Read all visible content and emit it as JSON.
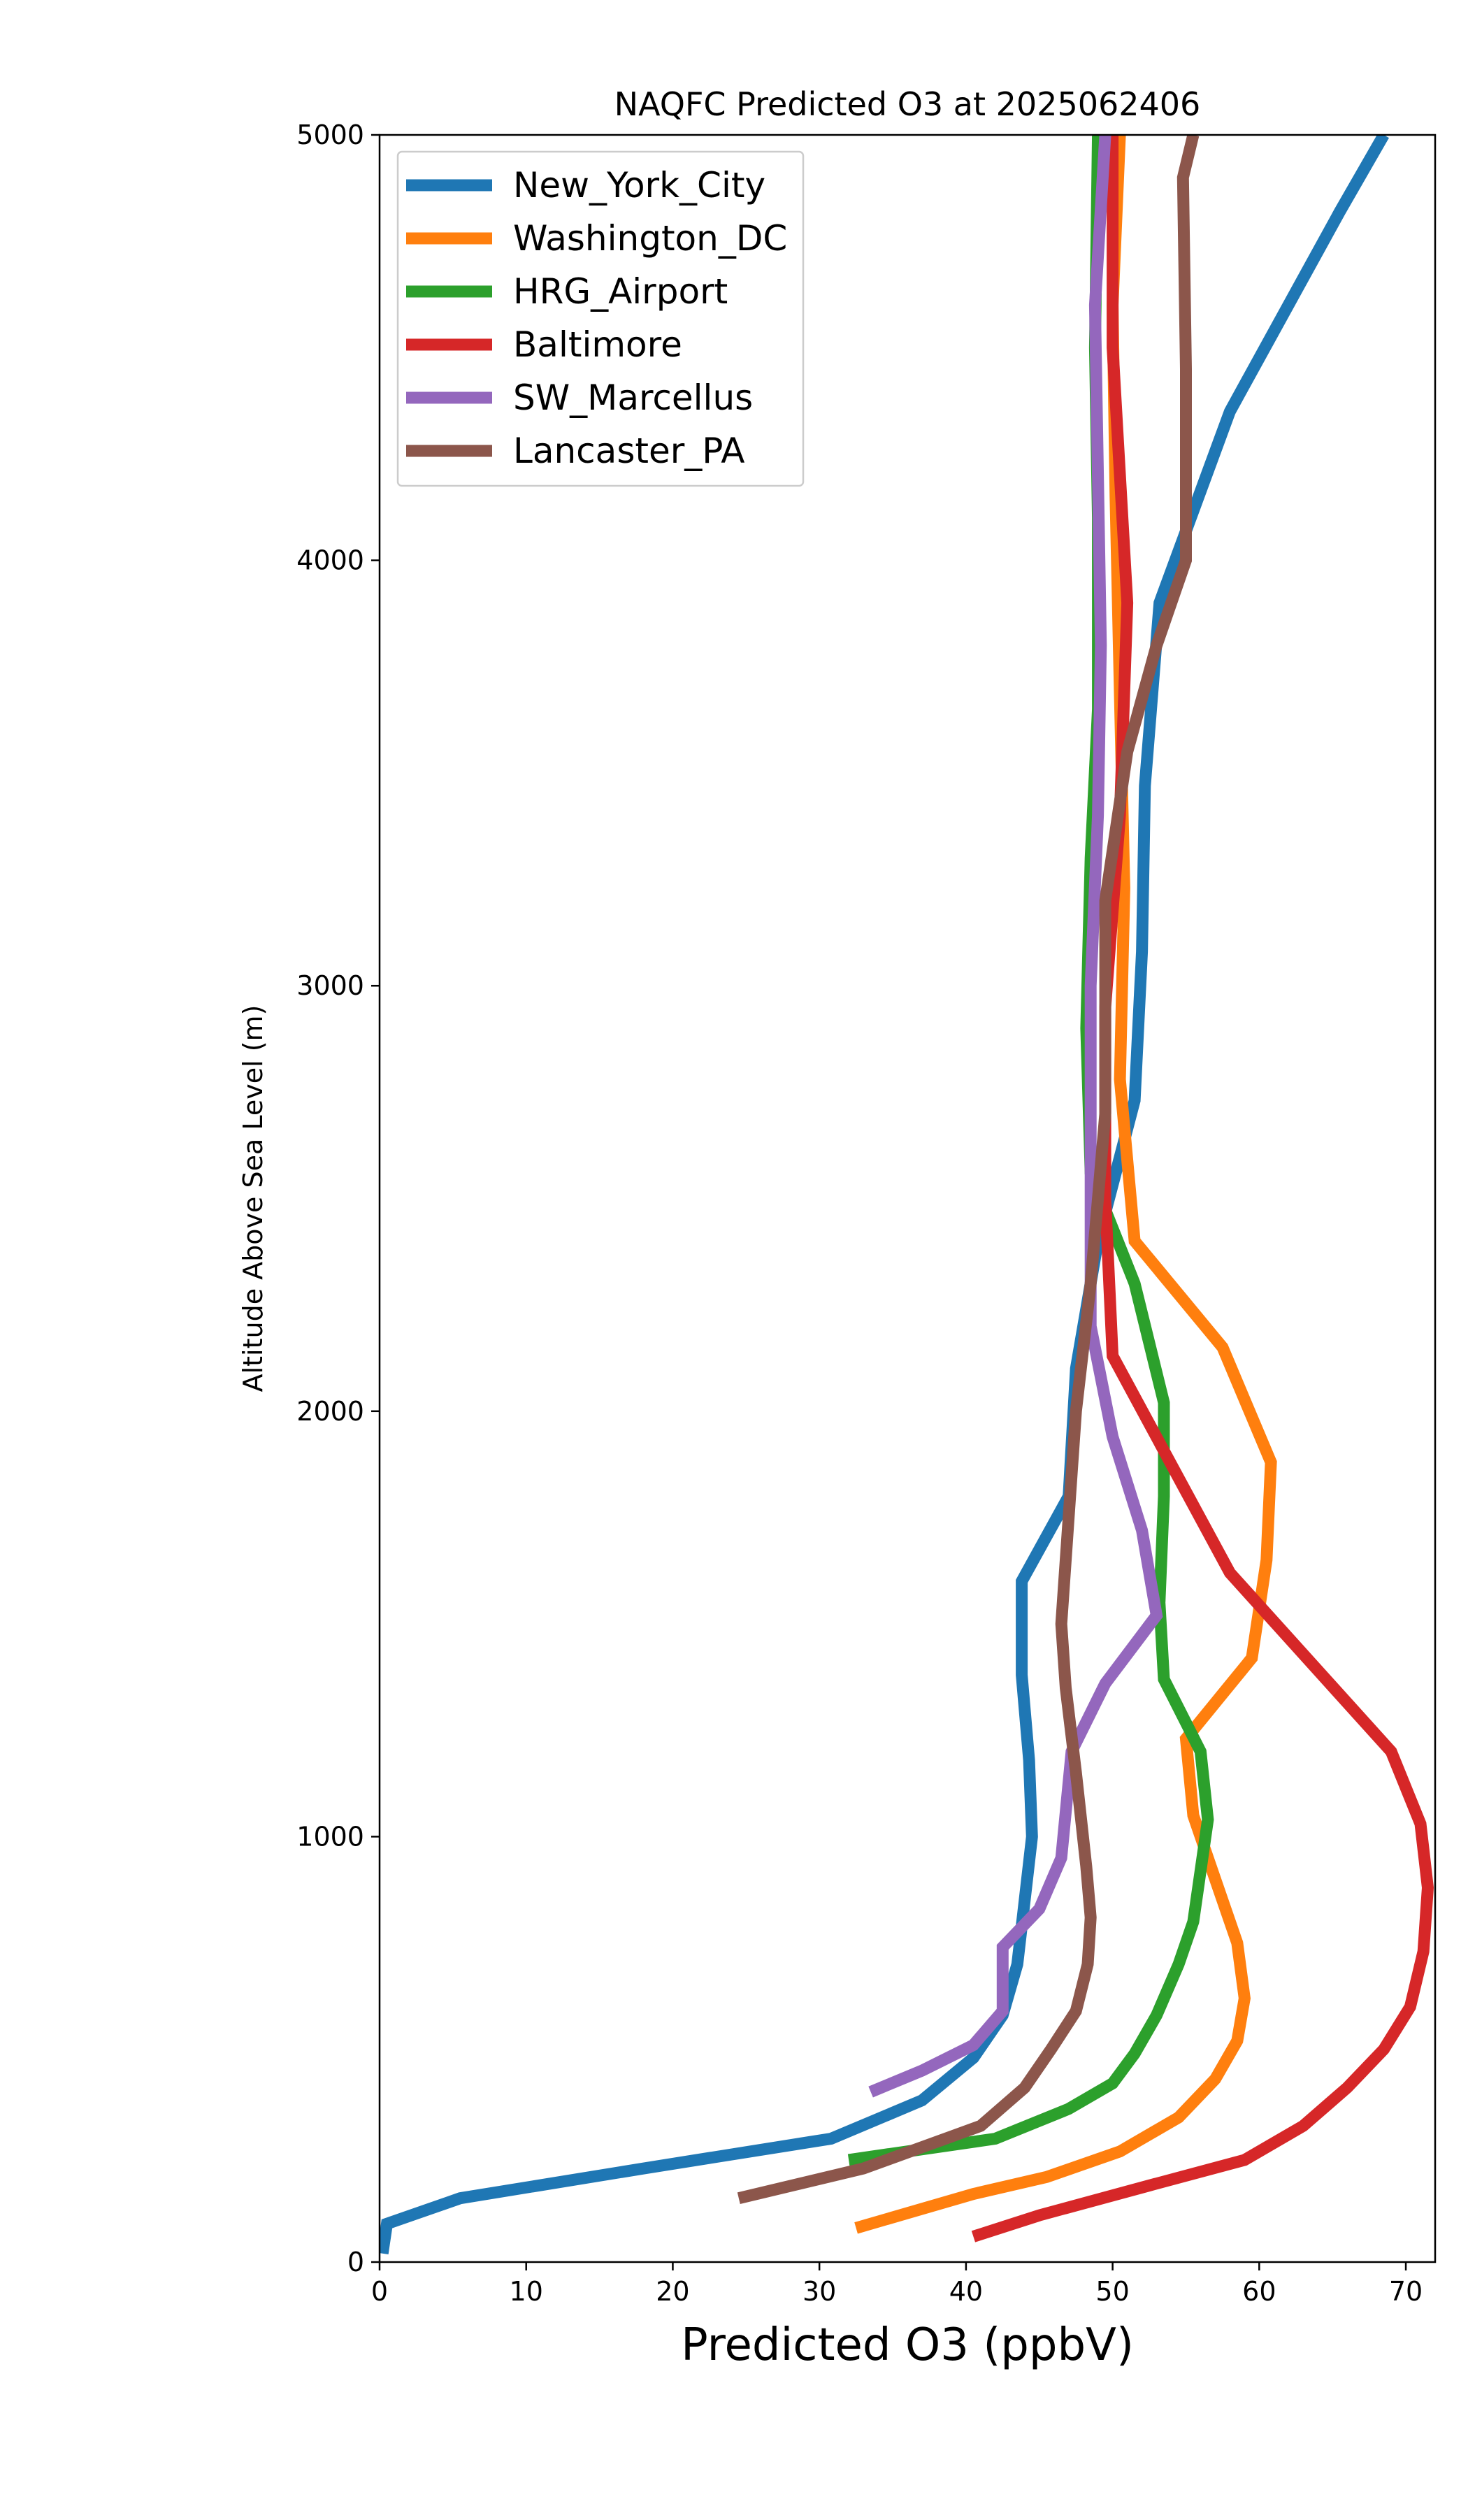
{
  "chart_data": {
    "type": "line",
    "title": "NAQFC Predicted O3 at 2025062406",
    "xlabel": "Predicted O3 (ppbV)",
    "ylabel": "Altitude Above Sea Level (m)",
    "xlim": [
      0,
      72
    ],
    "ylim": [
      0,
      5000
    ],
    "xticks": [
      0,
      10,
      20,
      30,
      40,
      50,
      60,
      70
    ],
    "yticks": [
      0,
      1000,
      2000,
      3000,
      4000,
      5000
    ],
    "xtick_labels": [
      "0",
      "10",
      "20",
      "30",
      "40",
      "50",
      "60",
      "70"
    ],
    "ytick_labels": [
      "0",
      "1000",
      "2000",
      "3000",
      "4000",
      "5000"
    ],
    "grid": false,
    "legend_position": "top-left",
    "series": [
      {
        "name": "New_York_City",
        "color": "#1f77b4",
        "points": [
          [
            0.2,
            20
          ],
          [
            0.5,
            90
          ],
          [
            5.5,
            150
          ],
          [
            18,
            220
          ],
          [
            30.8,
            290
          ],
          [
            37,
            380
          ],
          [
            40.5,
            480
          ],
          [
            42.5,
            580
          ],
          [
            43.5,
            700
          ],
          [
            44,
            850
          ],
          [
            44.5,
            1000
          ],
          [
            44.3,
            1180
          ],
          [
            43.8,
            1380
          ],
          [
            43.8,
            1600
          ],
          [
            47,
            1800
          ],
          [
            47.5,
            2100
          ],
          [
            49,
            2400
          ],
          [
            51.5,
            2730
          ],
          [
            52,
            3080
          ],
          [
            52.2,
            3470
          ],
          [
            53.2,
            3900
          ],
          [
            58,
            4350
          ],
          [
            65.5,
            4820
          ],
          [
            68.5,
            5000
          ]
        ]
      },
      {
        "name": "Washington_DC",
        "color": "#ff7f0e",
        "points": [
          [
            32.5,
            80
          ],
          [
            40.5,
            160
          ],
          [
            45.5,
            200
          ],
          [
            50.5,
            260
          ],
          [
            54.5,
            340
          ],
          [
            57,
            430
          ],
          [
            58.5,
            520
          ],
          [
            59,
            620
          ],
          [
            58.5,
            750
          ],
          [
            57,
            900
          ],
          [
            55.5,
            1050
          ],
          [
            55,
            1230
          ],
          [
            59.5,
            1420
          ],
          [
            60.5,
            1650
          ],
          [
            60.8,
            1880
          ],
          [
            57.5,
            2150
          ],
          [
            51.5,
            2400
          ],
          [
            50.5,
            2780
          ],
          [
            50.8,
            3230
          ],
          [
            50.5,
            3680
          ],
          [
            50.2,
            4150
          ],
          [
            50,
            4600
          ],
          [
            50.5,
            5000
          ]
        ]
      },
      {
        "name": "HRG_Airport",
        "color": "#2ca02c",
        "points": [
          [
            32,
            240
          ],
          [
            42,
            290
          ],
          [
            47,
            360
          ],
          [
            50,
            420
          ],
          [
            51.5,
            490
          ],
          [
            53,
            580
          ],
          [
            54.5,
            700
          ],
          [
            55.5,
            800
          ],
          [
            56.5,
            1040
          ],
          [
            56,
            1200
          ],
          [
            53.5,
            1370
          ],
          [
            53.2,
            1550
          ],
          [
            53.5,
            1800
          ],
          [
            53.5,
            2020
          ],
          [
            51.5,
            2300
          ],
          [
            48.5,
            2560
          ],
          [
            48.2,
            2900
          ],
          [
            48.5,
            3300
          ],
          [
            49,
            3650
          ],
          [
            49,
            4100
          ],
          [
            48.8,
            4500
          ],
          [
            49,
            5000
          ]
        ]
      },
      {
        "name": "Baltimore",
        "color": "#d62728",
        "points": [
          [
            40.5,
            60
          ],
          [
            45,
            110
          ],
          [
            52.5,
            180
          ],
          [
            59,
            240
          ],
          [
            63,
            320
          ],
          [
            66,
            410
          ],
          [
            68.5,
            500
          ],
          [
            70.3,
            600
          ],
          [
            71.2,
            730
          ],
          [
            71.5,
            880
          ],
          [
            71,
            1030
          ],
          [
            69,
            1200
          ],
          [
            58,
            1620
          ],
          [
            50,
            2130
          ],
          [
            49.5,
            2500
          ],
          [
            49.5,
            2950
          ],
          [
            50.5,
            3400
          ],
          [
            51,
            3900
          ],
          [
            50.5,
            4200
          ],
          [
            50,
            4500
          ],
          [
            50,
            5000
          ]
        ]
      },
      {
        "name": "SW_Marcellus",
        "color": "#9467bd",
        "points": [
          [
            33.5,
            400
          ],
          [
            37,
            450
          ],
          [
            40.5,
            510
          ],
          [
            42.5,
            590
          ],
          [
            42.5,
            740
          ],
          [
            45,
            830
          ],
          [
            46.5,
            950
          ],
          [
            47.2,
            1200
          ],
          [
            49.5,
            1360
          ],
          [
            53,
            1520
          ],
          [
            52,
            1720
          ],
          [
            50,
            1940
          ],
          [
            48.5,
            2200
          ],
          [
            48.5,
            2600
          ],
          [
            48.5,
            3000
          ],
          [
            49,
            3400
          ],
          [
            49.2,
            3800
          ],
          [
            49,
            4200
          ],
          [
            48.8,
            4600
          ],
          [
            49.5,
            5000
          ]
        ]
      },
      {
        "name": "Lancaster_PA",
        "color": "#8c564b",
        "points": [
          [
            24.5,
            150
          ],
          [
            33,
            220
          ],
          [
            41,
            320
          ],
          [
            44,
            410
          ],
          [
            45.8,
            500
          ],
          [
            47.5,
            590
          ],
          [
            48.3,
            700
          ],
          [
            48.5,
            810
          ],
          [
            48.2,
            930
          ],
          [
            47.5,
            1150
          ],
          [
            46.8,
            1350
          ],
          [
            46.5,
            1500
          ],
          [
            47,
            1750
          ],
          [
            47.5,
            2000
          ],
          [
            48.5,
            2300
          ],
          [
            49.5,
            2700
          ],
          [
            49.5,
            3200
          ],
          [
            51,
            3550
          ],
          [
            53,
            3800
          ],
          [
            55,
            4000
          ],
          [
            55,
            4450
          ],
          [
            54.8,
            4900
          ],
          [
            55.5,
            5000
          ]
        ]
      }
    ]
  }
}
